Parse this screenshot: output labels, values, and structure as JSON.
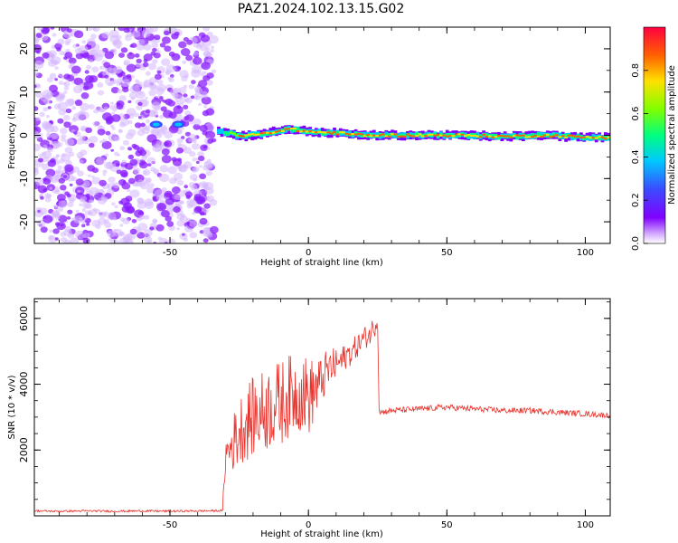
{
  "figure_title": "PAZ1.2024.102.13.15.G02",
  "colors": {
    "snr_line": "#e8312a",
    "spectrogram_cmap": [
      "#ffffff",
      "#d8b4ff",
      "#8000ff",
      "#3b4bff",
      "#00c8ff",
      "#00ff80",
      "#80ff00",
      "#ffe000",
      "#ff6000",
      "#ff0040"
    ]
  },
  "chart_data": [
    {
      "type": "heatmap",
      "title": "PAZ1.2024.102.13.15.G02",
      "xlabel": "Height of straight line (km)",
      "ylabel": "Frequency (Hz)",
      "xlim": [
        -99,
        109
      ],
      "ylim": [
        -25,
        25
      ],
      "x_ticks": [
        -50,
        0,
        50,
        100
      ],
      "x_tick_labels": [
        "-50",
        "0",
        "50",
        "100"
      ],
      "y_ticks": [
        -20,
        -10,
        0,
        10,
        20
      ],
      "y_tick_labels": [
        "-20",
        "-10",
        "0",
        "10",
        "20"
      ],
      "colorbar": {
        "label": "Normalized spectral amplitude",
        "range": [
          0,
          1
        ],
        "ticks": [
          0.0,
          0.2,
          0.4,
          0.6,
          0.8
        ],
        "tick_labels": [
          "0.0",
          "0.2",
          "0.4",
          "0.6",
          "0.8"
        ]
      },
      "noise_region": {
        "x_range": [
          -99,
          -34
        ],
        "f_range": [
          -25,
          25
        ],
        "amplitude": 0.12
      },
      "ridge": [
        {
          "x": -55,
          "f": 2.5,
          "amp": 0.25
        },
        {
          "x": -47,
          "f": 2.5,
          "amp": 0.25
        },
        {
          "x": -33,
          "f": 1.0,
          "amp": 0.45
        },
        {
          "x": -25,
          "f": -0.2,
          "amp": 0.8
        },
        {
          "x": -15,
          "f": 0.5,
          "amp": 0.85
        },
        {
          "x": -8,
          "f": 1.5,
          "amp": 0.9
        },
        {
          "x": 0,
          "f": 0.8,
          "amp": 0.9
        },
        {
          "x": 10,
          "f": 0.5,
          "amp": 0.95
        },
        {
          "x": 20,
          "f": 0.0,
          "amp": 0.95
        },
        {
          "x": 40,
          "f": 0.0,
          "amp": 0.95
        },
        {
          "x": 55,
          "f": 0.0,
          "amp": 0.95
        },
        {
          "x": 70,
          "f": -0.3,
          "amp": 0.95
        },
        {
          "x": 85,
          "f": 0.0,
          "amp": 0.95
        },
        {
          "x": 100,
          "f": -0.5,
          "amp": 0.95
        },
        {
          "x": 109,
          "f": -0.5,
          "amp": 0.95
        }
      ]
    },
    {
      "type": "line",
      "xlabel": "Height of straight line (km)",
      "ylabel": "SNR (10 * v/v)",
      "xlim": [
        -99,
        109
      ],
      "ylim": [
        0,
        6600
      ],
      "x_ticks": [
        -50,
        0,
        50,
        100
      ],
      "x_tick_labels": [
        "-50",
        "0",
        "50",
        "100"
      ],
      "y_ticks": [
        2000,
        4000,
        6000
      ],
      "y_tick_labels": [
        "2000",
        "4000",
        "6000"
      ],
      "series": [
        {
          "x": [
            -99,
            -90,
            -80,
            -70,
            -60,
            -50,
            -40,
            -35,
            -31,
            -30,
            -28,
            -26,
            -24,
            -22,
            -20,
            -18,
            -16,
            -14,
            -12,
            -10,
            -8,
            -6,
            -4,
            -2,
            0,
            2,
            4,
            6,
            8,
            10,
            12,
            14,
            16,
            18,
            20,
            22,
            24,
            25,
            25.5,
            26,
            30,
            40,
            50,
            60,
            70,
            80,
            90,
            100,
            109
          ],
          "y": [
            150,
            140,
            150,
            140,
            150,
            140,
            150,
            150,
            160,
            1800,
            2100,
            2400,
            2700,
            2900,
            3000,
            3100,
            3200,
            3300,
            3400,
            3400,
            3600,
            3700,
            3700,
            3800,
            3600,
            3800,
            4000,
            4300,
            4500,
            4600,
            4700,
            4900,
            5000,
            5200,
            5400,
            5500,
            5800,
            6000,
            3300,
            3150,
            3200,
            3250,
            3300,
            3250,
            3200,
            3200,
            3150,
            3100,
            3050
          ],
          "noise_amplitude": [
            30,
            30,
            30,
            30,
            30,
            30,
            30,
            30,
            30,
            600,
            800,
            1000,
            1100,
            1200,
            1200,
            1200,
            1300,
            1300,
            1300,
            1300,
            1300,
            1200,
            1200,
            1200,
            1200,
            1000,
            800,
            700,
            600,
            500,
            450,
            400,
            400,
            350,
            350,
            350,
            350,
            350,
            120,
            90,
            90,
            90,
            90,
            90,
            90,
            90,
            90,
            90,
            80
          ]
        }
      ]
    }
  ]
}
